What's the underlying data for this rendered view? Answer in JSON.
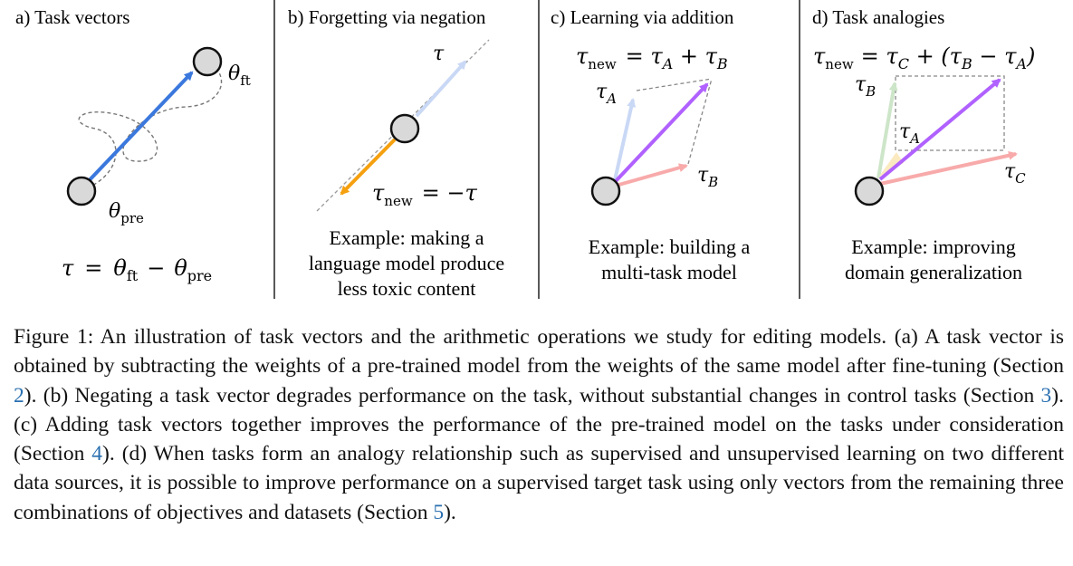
{
  "colors": {
    "blue": "#3b78dd",
    "light_blue": "#c9d8f5",
    "orange": "#f5a00f",
    "purple": "#b061ff",
    "pink": "#f8aaaa",
    "green": "#cde5c8",
    "yellow": "#fbeac0",
    "node_fill": "#d9d9d9",
    "ref_link": "#2a6fb0"
  },
  "panels": {
    "a": {
      "title": "a) Task vectors",
      "theta_ft": "θ",
      "theta_ft_sub": "ft",
      "theta_pre": "θ",
      "theta_pre_sub": "pre",
      "equation": {
        "lhs": "τ",
        "eq": "=",
        "t1": "θ",
        "t1_sub": "ft",
        "minus": "−",
        "t2": "θ",
        "t2_sub": "pre"
      }
    },
    "b": {
      "title": "b) Forgetting via negation",
      "tau": "τ",
      "tau_new": "τ",
      "tau_new_sub": "new",
      "eq": "= −τ",
      "example": [
        "Example: making a",
        "language model produce",
        "less toxic content"
      ]
    },
    "c": {
      "title": "c) Learning via addition",
      "equation": {
        "lhs": "τ",
        "lhs_sub": "new",
        "rhs": "= τ",
        "a_sub": "A",
        "plus": " + τ",
        "b_sub": "B"
      },
      "tau_a": "τ",
      "tau_a_sub": "A",
      "tau_b": "τ",
      "tau_b_sub": "B",
      "example": [
        "Example: building a",
        "multi-task model"
      ]
    },
    "d": {
      "title": "d) Task analogies",
      "equation": {
        "lhs": "τ",
        "lhs_sub": "new",
        "rhs1": "= τ",
        "c_sub": "C",
        "rhs2": " + (τ",
        "b_sub": "B",
        "rhs3": " − τ",
        "a_sub": "A",
        "close": ")"
      },
      "tau_b": "τ",
      "tau_b_sub": "B",
      "tau_a": "τ",
      "tau_a_sub": "A",
      "tau_c": "τ",
      "tau_c_sub": "C",
      "example": [
        "Example: improving",
        "domain generalization"
      ]
    }
  },
  "caption": {
    "prefix": "Figure 1: An illustration of task vectors and the arithmetic operations we study for editing models. (a) A task vector is obtained by subtracting the weights of a pre-trained model from the weights of the same model after fine-tuning (Section ",
    "ref1": "2",
    "mid1": "). (b) Negating a task vector degrades performance on the task, without substantial changes in control tasks (Section ",
    "ref2": "3",
    "mid2": "). (c) Adding task vectors together improves the performance of the pre-trained model on the tasks under consideration (Section ",
    "ref3": "4",
    "mid3": "). (d) When tasks form an analogy relationship such as supervised and unsupervised learning on two different data sources, it is possible to improve performance on a supervised target task using only vectors from the remaining three combinations of objectives and datasets (Section ",
    "ref4": "5",
    "suffix": ")."
  }
}
